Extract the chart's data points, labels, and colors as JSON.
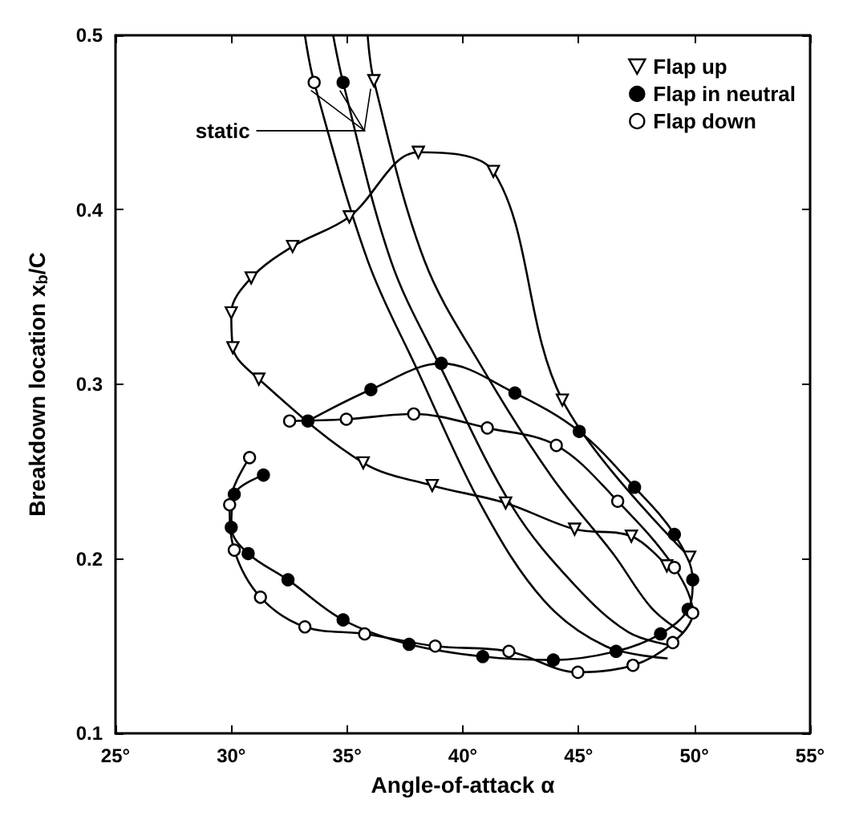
{
  "chart_data": {
    "type": "line",
    "xlabel": "Angle-of-attack α",
    "ylabel": "Breakdown location x$_{b}$/C",
    "xlim": [
      25,
      55
    ],
    "xticks": [
      {
        "value": 25,
        "label": "25°"
      },
      {
        "value": 30,
        "label": "30°"
      },
      {
        "value": 35,
        "label": "35°"
      },
      {
        "value": 40,
        "label": "40°"
      },
      {
        "value": 45,
        "label": "45°"
      },
      {
        "value": 50,
        "label": "50°"
      },
      {
        "value": 55,
        "label": "55°"
      }
    ],
    "ylim": [
      0.1,
      0.5
    ],
    "yticks": [
      0.1,
      0.2,
      0.3,
      0.4,
      0.5
    ],
    "legend": "top right",
    "line_style": "solid",
    "annotations": [
      {
        "text": "static",
        "x": 34.83,
        "y": 0.473
      }
    ],
    "series": [
      {
        "name": "Flap up",
        "color": "#000000",
        "marker": "triangle",
        "colors": [
          "#ffffff",
          "#ffffff",
          "#ffffff",
          "#ffffff",
          "#ffffff",
          "#ffffff",
          "#ffffff",
          "#ffffff",
          "#ffffff",
          "#ffffff",
          "#ffffff",
          "#ffffff",
          "#ffffff",
          "#ffffff",
          "#ffffff",
          "#ffffff"
        ],
        "x": [
          49.8,
          44.3,
          41.32,
          38.08,
          35.1,
          32.65,
          30.86,
          30.0,
          30.07,
          31.19,
          35.7,
          38.68,
          41.85,
          44.83,
          47.28,
          48.81
        ],
        "values": [
          0.201,
          0.291,
          0.422,
          0.433,
          0.396,
          0.379,
          0.361,
          0.341,
          0.321,
          0.303,
          0.255,
          0.242,
          0.232,
          0.217,
          0.213,
          0.196
        ]
      },
      {
        "name": "Flap in neutral",
        "color": "#000000",
        "marker": "circle",
        "x": [
          33.31,
          36.03,
          39.07,
          42.25,
          45.03,
          47.42,
          49.14,
          49.93,
          49.73,
          48.54,
          46.62,
          43.91,
          40.86,
          37.68,
          34.83,
          32.45,
          30.73,
          30.0,
          30.13,
          31.39
        ],
        "values": [
          0.279,
          0.297,
          0.312,
          0.295,
          0.273,
          0.241,
          0.214,
          0.188,
          0.171,
          0.157,
          0.147,
          0.142,
          0.144,
          0.151,
          0.165,
          0.188,
          0.203,
          0.218,
          0.237,
          0.248
        ]
      },
      {
        "name": "Flap down",
        "color": "#000000",
        "marker": "circle",
        "colors": [
          "#ffffff",
          "#ffffff",
          "#ffffff",
          "#ffffff",
          "#ffffff",
          "#ffffff",
          "#ffffff",
          "#ffffff",
          "#ffffff",
          "#ffffff",
          "#ffffff",
          "#ffffff",
          "#ffffff",
          "#ffffff",
          "#ffffff",
          "#ffffff",
          "#ffffff",
          "#ffffff",
          "#ffffff"
        ],
        "x": [
          32.52,
          34.97,
          37.88,
          41.06,
          44.04,
          46.69,
          49.14,
          49.93,
          49.07,
          47.35,
          44.97,
          41.99,
          38.81,
          35.76,
          33.18,
          31.26,
          30.13,
          29.93,
          30.79
        ],
        "values": [
          0.279,
          0.28,
          0.283,
          0.275,
          0.265,
          0.233,
          0.195,
          0.169,
          0.152,
          0.139,
          0.135,
          0.147,
          0.15,
          0.157,
          0.161,
          0.178,
          0.205,
          0.231,
          0.258
        ]
      },
      {
        "color": "#000000",
        "marker": "none",
        "x": [
          33.18,
          33.58,
          35.89,
          38.01,
          40.86,
          43.51,
          46.16,
          48.81
        ],
        "values": [
          0.5,
          0.473,
          0.371,
          0.309,
          0.229,
          0.176,
          0.15,
          0.143
        ]
      },
      {
        "color": "#000000",
        "marker": "none",
        "x": [
          34.4,
          34.83,
          36.89,
          39.07,
          42.18,
          44.83,
          47.15,
          49.13
        ],
        "values": [
          0.5,
          0.473,
          0.371,
          0.309,
          0.229,
          0.185,
          0.158,
          0.15
        ]
      },
      {
        "color": "#000000",
        "marker": "none",
        "x": [
          35.89,
          36.16,
          38.34,
          40.86,
          43.84,
          46.49,
          48.14,
          49.46
        ],
        "values": [
          0.5,
          0.474,
          0.371,
          0.309,
          0.247,
          0.203,
          0.172,
          0.158
        ]
      },
      {
        "type": "scatter",
        "color": "#000000",
        "marker": "circle",
        "colors": [
          "#ffffff"
        ],
        "x": [
          33.58
        ],
        "values": [
          0.473
        ]
      },
      {
        "type": "scatter",
        "color": "#000000",
        "marker": "circle",
        "x": [
          34.83
        ],
        "values": [
          0.473
        ]
      },
      {
        "type": "scatter",
        "color": "#000000",
        "marker": "triangle",
        "colors": [
          "#ffffff"
        ],
        "x": [
          36.16
        ],
        "values": [
          0.474
        ]
      }
    ]
  }
}
